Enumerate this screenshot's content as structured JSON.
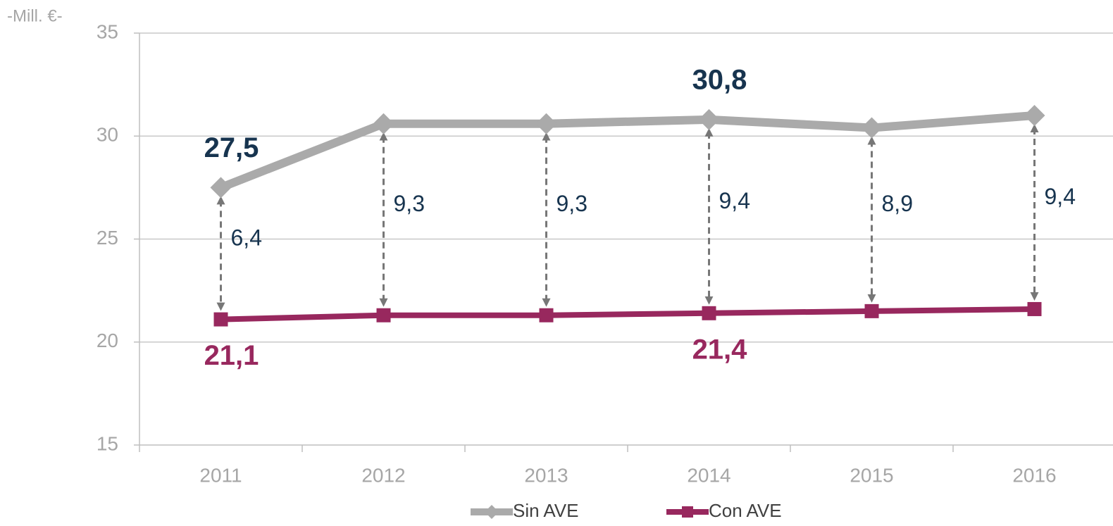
{
  "chart_data": {
    "type": "line",
    "y_label": "-Mill. €-",
    "categories": [
      "2011",
      "2012",
      "2013",
      "2014",
      "2015",
      "2016"
    ],
    "series": [
      {
        "name": "Sin AVE",
        "color": "#aaaaaa",
        "marker": "diamond",
        "values": [
          27.5,
          30.6,
          30.6,
          30.8,
          30.4,
          31.0
        ],
        "value_labels": [
          "27,5",
          null,
          null,
          "30,8",
          null,
          null
        ],
        "label_color": "#17344f",
        "label_position": "above"
      },
      {
        "name": "Con AVE",
        "color": "#98285e",
        "marker": "square",
        "values": [
          21.1,
          21.3,
          21.3,
          21.4,
          21.5,
          21.6
        ],
        "value_labels": [
          "21,1",
          null,
          null,
          "21,4",
          null,
          null
        ],
        "label_color": "#98285e",
        "label_position": "below"
      }
    ],
    "differences": {
      "values": [
        6.4,
        9.3,
        9.3,
        9.4,
        8.9,
        9.4
      ],
      "value_labels": [
        "6,4",
        "9,3",
        "9,3",
        "9,4",
        "8,9",
        "9,4"
      ],
      "color": "#777777",
      "label_color": "#17344f"
    },
    "ylim": [
      15,
      35
    ],
    "yticks": [
      15,
      20,
      25,
      30,
      35
    ],
    "grid": true,
    "legend": "bottom"
  }
}
